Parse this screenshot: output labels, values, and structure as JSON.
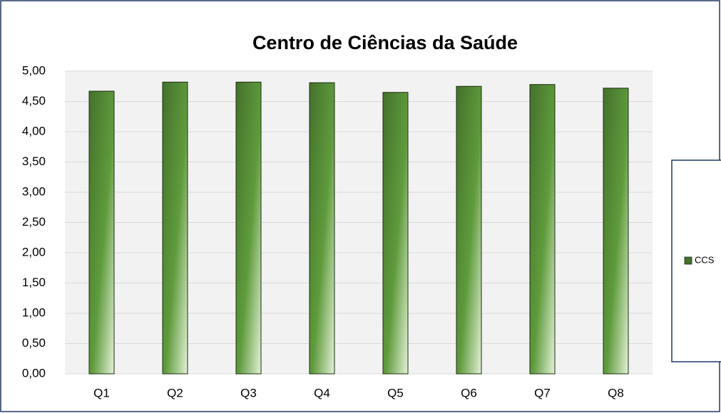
{
  "chart_data": {
    "type": "bar",
    "title": "Centro de Ciências da Saúde",
    "categories": [
      "Q1",
      "Q2",
      "Q3",
      "Q4",
      "Q5",
      "Q6",
      "Q7",
      "Q8"
    ],
    "series": [
      {
        "name": "CCS",
        "color": "#44712c",
        "values": [
          4.67,
          4.82,
          4.82,
          4.81,
          4.65,
          4.75,
          4.78,
          4.72
        ]
      }
    ],
    "ylim": [
      0,
      5
    ],
    "yticks": [
      {
        "value": 0,
        "label": "0,00"
      },
      {
        "value": 0.5,
        "label": "0,50"
      },
      {
        "value": 1,
        "label": "1,00"
      },
      {
        "value": 1.5,
        "label": "1,50"
      },
      {
        "value": 2,
        "label": "2,00"
      },
      {
        "value": 2.5,
        "label": "2,50"
      },
      {
        "value": 3,
        "label": "3,00"
      },
      {
        "value": 3.5,
        "label": "3,50"
      },
      {
        "value": 4,
        "label": "4,00"
      },
      {
        "value": 4.5,
        "label": "4,50"
      },
      {
        "value": 5,
        "label": "5,00"
      }
    ],
    "grid": true,
    "legend": "right"
  }
}
